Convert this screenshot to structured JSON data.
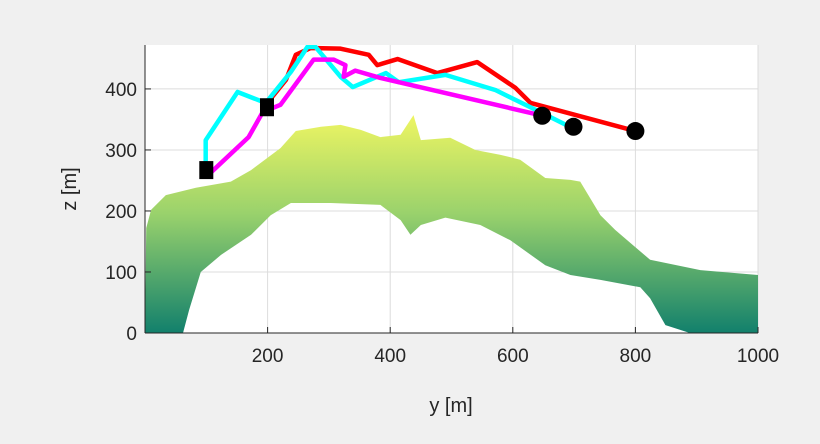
{
  "chart_data": {
    "type": "line",
    "title": "",
    "xlabel": "y [m]",
    "ylabel": "z [m]",
    "xlim": [
      0,
      1000
    ],
    "ylim": [
      0,
      472
    ],
    "grid": true,
    "xticks": [
      200,
      400,
      600,
      800,
      1000
    ],
    "yticks": [
      0,
      100,
      200,
      300,
      400
    ],
    "colors": {
      "terrain_top": "#e8f060",
      "terrain_mid": "#8fcf6e",
      "terrain_bottom": "#1a8a6e"
    },
    "terrain": {
      "top": [
        [
          2,
          172
        ],
        [
          10,
          202
        ],
        [
          34,
          226
        ],
        [
          83,
          238
        ],
        [
          140,
          248
        ],
        [
          173,
          267
        ],
        [
          221,
          303
        ],
        [
          246,
          331
        ],
        [
          287,
          338
        ],
        [
          319,
          341
        ],
        [
          352,
          333
        ],
        [
          384,
          321
        ],
        [
          417,
          325
        ],
        [
          438,
          357
        ],
        [
          450,
          316
        ],
        [
          498,
          320
        ],
        [
          539,
          300
        ],
        [
          580,
          292
        ],
        [
          612,
          284
        ],
        [
          653,
          254
        ],
        [
          694,
          251
        ],
        [
          710,
          248
        ],
        [
          743,
          193
        ],
        [
          767,
          169
        ],
        [
          824,
          120
        ],
        [
          906,
          103
        ],
        [
          1000,
          95
        ]
      ],
      "bottom": [
        [
          1000,
          0
        ],
        [
          889,
          0
        ],
        [
          849,
          13
        ],
        [
          824,
          57
        ],
        [
          808,
          75
        ],
        [
          743,
          87
        ],
        [
          694,
          95
        ],
        [
          653,
          111
        ],
        [
          596,
          152
        ],
        [
          547,
          177
        ],
        [
          490,
          189
        ],
        [
          450,
          177
        ],
        [
          433,
          161
        ],
        [
          417,
          185
        ],
        [
          384,
          210
        ],
        [
          303,
          213
        ],
        [
          238,
          213
        ],
        [
          205,
          193
        ],
        [
          173,
          161
        ],
        [
          124,
          128
        ],
        [
          91,
          100
        ],
        [
          72,
          38
        ],
        [
          62,
          0
        ],
        [
          0,
          0
        ]
      ]
    },
    "series": [
      {
        "name": "red path",
        "color": "#ff0000",
        "points": [
          [
            197,
            374
          ],
          [
            230,
            415
          ],
          [
            246,
            456
          ],
          [
            270,
            467
          ],
          [
            319,
            466
          ],
          [
            365,
            456
          ],
          [
            379,
            439
          ],
          [
            412,
            449
          ],
          [
            477,
            426
          ],
          [
            542,
            444
          ],
          [
            604,
            402
          ],
          [
            629,
            377
          ],
          [
            800,
            331
          ]
        ]
      },
      {
        "name": "cyan path",
        "color": "#00ffff",
        "points": [
          [
            99,
            275
          ],
          [
            99,
            316
          ],
          [
            151,
            395
          ],
          [
            197,
            377
          ],
          [
            238,
            428
          ],
          [
            265,
            469
          ],
          [
            278,
            469
          ],
          [
            319,
            420
          ],
          [
            339,
            403
          ],
          [
            393,
            426
          ],
          [
            414,
            411
          ],
          [
            490,
            423
          ],
          [
            572,
            398
          ],
          [
            645,
            362
          ],
          [
            697,
            336
          ]
        ]
      },
      {
        "name": "magenta path",
        "color": "#ff00ff",
        "points": [
          [
            101,
            257
          ],
          [
            169,
            321
          ],
          [
            192,
            362
          ],
          [
            221,
            374
          ],
          [
            275,
            448
          ],
          [
            308,
            448
          ],
          [
            327,
            439
          ],
          [
            324,
            420
          ],
          [
            343,
            430
          ],
          [
            384,
            418
          ],
          [
            645,
            357
          ]
        ]
      }
    ],
    "start_markers": [
      [
        100,
        267
      ],
      [
        199,
        370
      ]
    ],
    "end_markers": [
      [
        648,
        356
      ],
      [
        699,
        338
      ],
      [
        800,
        331
      ]
    ]
  }
}
